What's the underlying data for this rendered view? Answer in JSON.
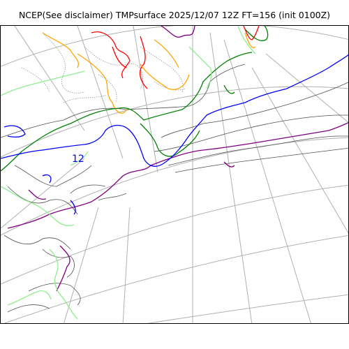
{
  "title": "NCEP(See disclaimer) TMPsurface 2025/12/07 12Z FT=156 (init 0100Z)",
  "map": {
    "contour_labels": [
      {
        "text": "12",
        "color": "#0000ff"
      }
    ],
    "contour_colors": {
      "warm": "#800080",
      "cool": "#0000ff",
      "cold": "#008000",
      "colder": "#90ee90",
      "freezing": "#ffa500",
      "very_cold": "#ff0000",
      "lines": "#555555"
    }
  }
}
